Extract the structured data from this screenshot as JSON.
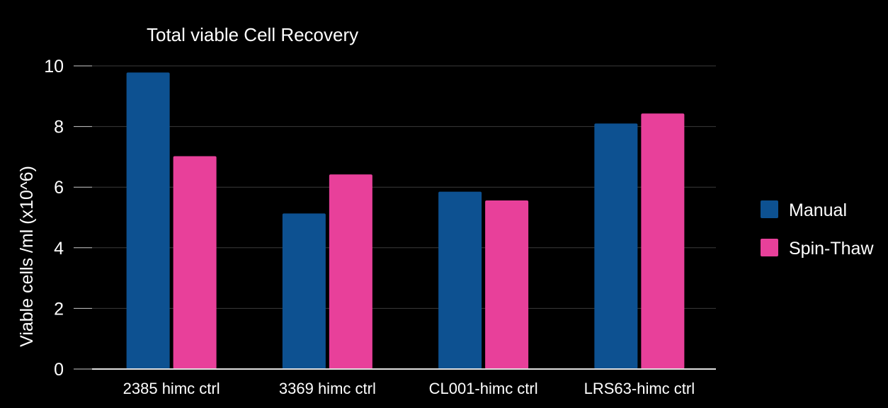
{
  "chart_data": {
    "type": "bar",
    "title": "Total viable Cell Recovery",
    "xlabel": "",
    "ylabel": "Viable cells /ml (x10^6)",
    "categories": [
      "2385 himc ctrl",
      "3369 himc ctrl",
      "CL001-himc ctrl",
      "LRS63-himc ctrl"
    ],
    "series": [
      {
        "name": "Manual",
        "values": [
          9.78,
          5.13,
          5.85,
          8.1
        ],
        "color": "#0d5191"
      },
      {
        "name": "Spin-Thaw",
        "values": [
          7.02,
          6.42,
          5.56,
          8.43
        ],
        "color": "#e8409a"
      }
    ],
    "ylim": [
      0,
      10
    ],
    "yticks": [
      "0",
      "2",
      "4",
      "6",
      "8",
      "10"
    ],
    "grid": true,
    "legend_position": "right"
  }
}
